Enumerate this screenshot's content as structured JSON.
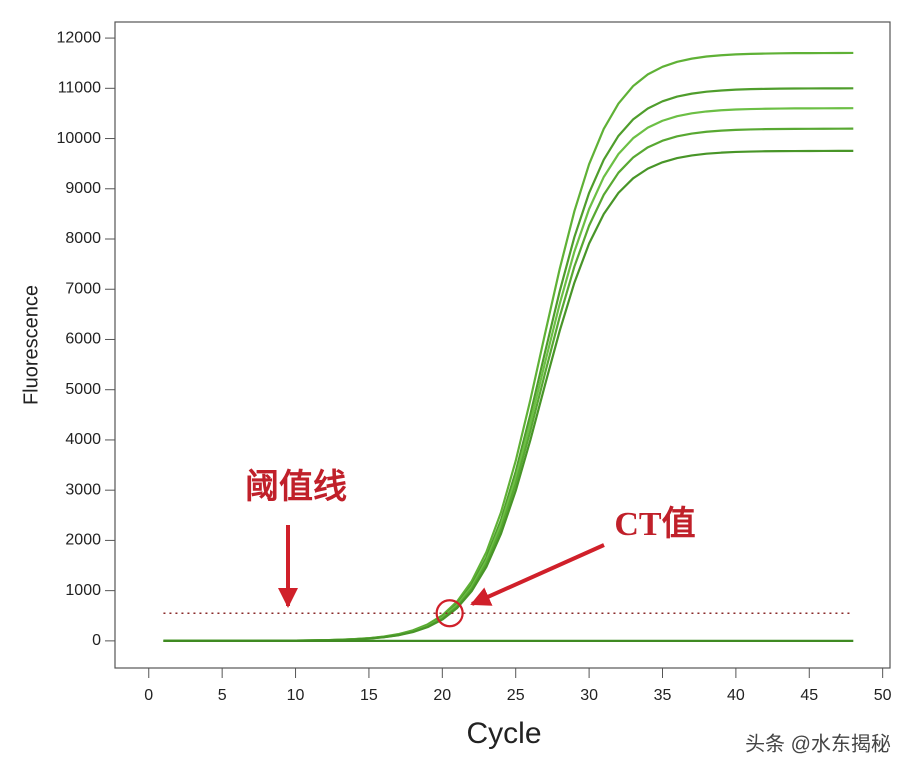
{
  "chart_data": {
    "type": "line",
    "x_label": "Cycle",
    "y_label": "Fluorescence",
    "x": [
      1,
      2,
      3,
      4,
      5,
      6,
      7,
      8,
      9,
      10,
      11,
      12,
      13,
      14,
      15,
      16,
      17,
      18,
      19,
      20,
      21,
      22,
      23,
      24,
      25,
      26,
      27,
      28,
      29,
      30,
      31,
      32,
      33,
      34,
      35,
      36,
      37,
      38,
      39,
      40,
      41,
      42,
      43,
      44,
      45,
      46,
      47,
      48
    ],
    "xlim": [
      -2.3,
      50.5
    ],
    "ylim": [
      -540,
      12320
    ],
    "xticks": [
      0,
      5,
      10,
      15,
      20,
      25,
      30,
      35,
      40,
      45,
      50
    ],
    "yticks": [
      0,
      1000,
      2000,
      3000,
      4000,
      5000,
      6000,
      7000,
      8000,
      9000,
      10000,
      11000,
      12000
    ],
    "series": [
      {
        "color": "#5fb136",
        "values": [
          0,
          0,
          0,
          0,
          1,
          1,
          1,
          2,
          3,
          5,
          9,
          14,
          22,
          35,
          54,
          86,
          134,
          211,
          329,
          509,
          782,
          1187,
          1766,
          2561,
          3584,
          4799,
          6118,
          7408,
          8556,
          9489,
          10193,
          10697,
          11045,
          11277,
          11428,
          11528,
          11591,
          11633,
          11658,
          11675,
          11686,
          11692,
          11697,
          11700,
          11701,
          11702,
          11703,
          11704
        ]
      },
      {
        "color": "#4f9d2c",
        "values": [
          0,
          0,
          0,
          0,
          1,
          1,
          1,
          2,
          3,
          5,
          8,
          13,
          21,
          33,
          51,
          81,
          126,
          198,
          309,
          478,
          735,
          1116,
          1660,
          2407,
          3368,
          4510,
          5750,
          6962,
          8041,
          8918,
          9580,
          10054,
          10381,
          10599,
          10741,
          10835,
          10894,
          10933,
          10957,
          10973,
          10983,
          10989,
          10993,
          10996,
          10997,
          10998,
          10999,
          11000
        ]
      },
      {
        "color": "#6cbf45",
        "values": [
          0,
          0,
          0,
          0,
          1,
          1,
          1,
          2,
          3,
          5,
          8,
          13,
          20,
          32,
          49,
          78,
          121,
          191,
          298,
          461,
          709,
          1076,
          1600,
          2320,
          3247,
          4348,
          5543,
          6711,
          7752,
          8597,
          9235,
          9692,
          10007,
          10217,
          10354,
          10445,
          10502,
          10539,
          10563,
          10578,
          10587,
          10593,
          10597,
          10600,
          10601,
          10602,
          10603,
          10604
        ]
      },
      {
        "color": "#58a832",
        "values": [
          0,
          0,
          0,
          0,
          1,
          1,
          1,
          2,
          3,
          5,
          7,
          12,
          19,
          31,
          47,
          75,
          117,
          184,
          286,
          443,
          681,
          1035,
          1539,
          2231,
          3122,
          4181,
          5330,
          6454,
          7454,
          8267,
          8881,
          9320,
          9623,
          9825,
          9957,
          10044,
          10099,
          10135,
          10157,
          10172,
          10181,
          10187,
          10190,
          10193,
          10194,
          10195,
          10196,
          10197
        ]
      },
      {
        "color": "#489528",
        "values": [
          0,
          0,
          0,
          0,
          1,
          1,
          1,
          2,
          3,
          4,
          7,
          12,
          19,
          29,
          45,
          72,
          112,
          176,
          274,
          424,
          652,
          990,
          1472,
          2135,
          2987,
          4000,
          5100,
          6175,
          7132,
          7910,
          8497,
          8918,
          9208,
          9401,
          9527,
          9611,
          9663,
          9698,
          9719,
          9733,
          9741,
          9747,
          9750,
          9751,
          9752,
          9753,
          9754,
          9755
        ]
      },
      {
        "color": "#3f8a22",
        "values": [
          0,
          0,
          0,
          0,
          0,
          0,
          0,
          0,
          0,
          0,
          0,
          0,
          0,
          0,
          0,
          0,
          0,
          0,
          0,
          0,
          0,
          0,
          0,
          0,
          0,
          0,
          0,
          0,
          0,
          0,
          0,
          0,
          0,
          0,
          0,
          0,
          0,
          0,
          0,
          0,
          0,
          0,
          0,
          0,
          0,
          0,
          0,
          0
        ]
      }
    ],
    "threshold": 550,
    "ct": 20.5,
    "annotations": [
      {
        "text": "阈值线"
      },
      {
        "text": "CT值"
      }
    ],
    "annotation_color": "#c0202a",
    "watermark": "头条 @水东揭秘"
  }
}
